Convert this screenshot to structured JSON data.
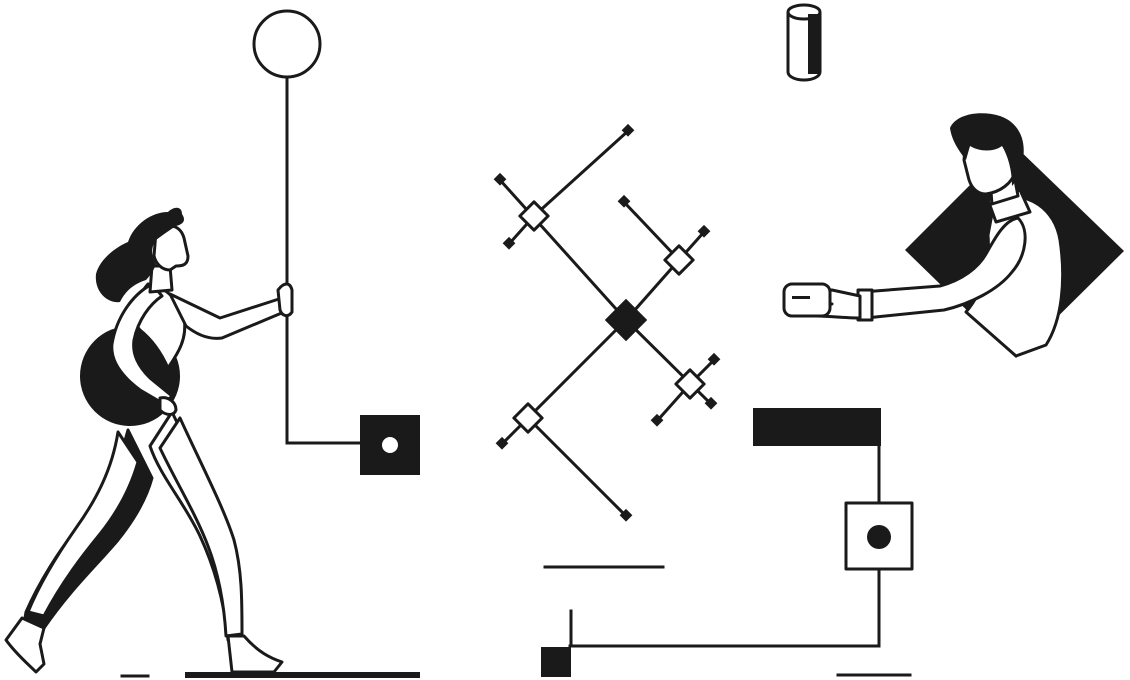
{
  "palette": {
    "ink": "#1a1a1a",
    "background": "#ffffff"
  },
  "illustration": {
    "style": "monochrome line-art",
    "figures": [
      "walking-woman",
      "man-in-diamond-frame"
    ],
    "icons": [
      "hanging-pendulum-node",
      "cross-network-node",
      "cylinder-block",
      "connector-bracket-node"
    ]
  }
}
